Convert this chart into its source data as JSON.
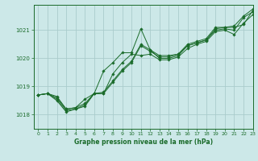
{
  "title": "Graphe pression niveau de la mer (hPa)",
  "bg_color": "#cce8e8",
  "grid_color": "#aacccc",
  "line_color": "#1a6b2a",
  "xlim": [
    -0.5,
    23
  ],
  "ylim": [
    1017.5,
    1021.9
  ],
  "yticks": [
    1018,
    1019,
    1020,
    1021
  ],
  "xticks": [
    0,
    1,
    2,
    3,
    4,
    5,
    6,
    7,
    8,
    9,
    10,
    11,
    12,
    13,
    14,
    15,
    16,
    17,
    18,
    19,
    20,
    21,
    22,
    23
  ],
  "lines": [
    [
      1018.7,
      1018.75,
      1018.6,
      1018.2,
      1018.25,
      1018.4,
      1018.75,
      1018.8,
      1019.2,
      1019.6,
      1019.9,
      1020.5,
      1020.3,
      1020.1,
      1020.1,
      1020.15,
      1020.5,
      1020.6,
      1020.7,
      1021.1,
      1021.1,
      1021.15,
      1021.5,
      1021.75
    ],
    [
      1018.7,
      1018.75,
      1018.65,
      1018.2,
      1018.25,
      1018.55,
      1018.75,
      1019.55,
      1019.85,
      1020.2,
      1020.2,
      1021.05,
      1020.3,
      1020.0,
      1020.0,
      1020.1,
      1020.45,
      1020.55,
      1020.65,
      1021.05,
      1021.1,
      1021.1,
      1021.2,
      1021.7
    ],
    [
      1018.7,
      1018.75,
      1018.55,
      1018.15,
      1018.2,
      1018.35,
      1018.75,
      1018.75,
      1019.15,
      1019.55,
      1019.85,
      1020.45,
      1020.25,
      1020.05,
      1020.05,
      1020.15,
      1020.45,
      1020.55,
      1020.65,
      1021.0,
      1021.05,
      1021.0,
      1021.45,
      1021.65
    ],
    [
      1018.7,
      1018.75,
      1018.5,
      1018.1,
      1018.2,
      1018.3,
      1018.75,
      1018.75,
      1019.45,
      1019.85,
      1020.15,
      1020.1,
      1020.15,
      1019.95,
      1019.95,
      1020.05,
      1020.35,
      1020.5,
      1020.6,
      1020.95,
      1021.0,
      1020.85,
      1021.25,
      1021.55
    ]
  ]
}
